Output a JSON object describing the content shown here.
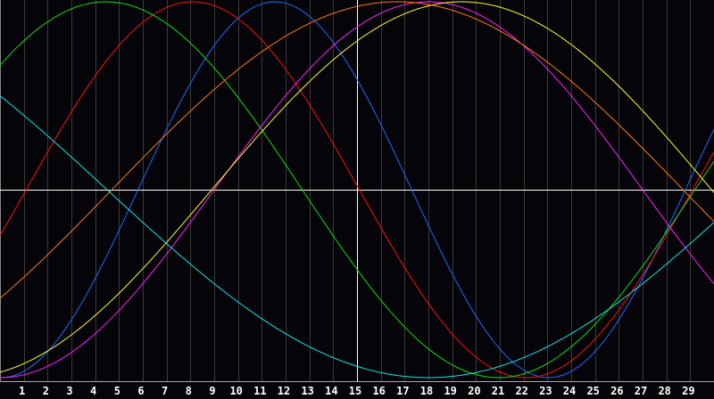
{
  "chart_data": {
    "type": "line",
    "x_ticks": [
      "1",
      "2",
      "3",
      "4",
      "5",
      "6",
      "7",
      "8",
      "9",
      "10",
      "11",
      "12",
      "13",
      "14",
      "15",
      "16",
      "17",
      "18",
      "19",
      "20",
      "21",
      "22",
      "23",
      "24",
      "25",
      "26",
      "27",
      "28",
      "29"
    ],
    "xlim": [
      0,
      30
    ],
    "ylim": [
      -1,
      1
    ],
    "grid": true,
    "highlight_x": 15,
    "highlight_y": 0,
    "series": [
      {
        "color": "#1e6cff",
        "period": 23,
        "zero_up_day": 5.8
      },
      {
        "color": "#ff1010",
        "period": 28,
        "zero_up_day": 1.1
      },
      {
        "color": "#10e010",
        "period": 33,
        "zero_up_day": -3.8
      },
      {
        "color": "#ff20ff",
        "period": 36,
        "zero_up_day": 9.0
      },
      {
        "color": "#ffff20",
        "period": 42,
        "zero_up_day": 8.9
      },
      {
        "color": "#ff7a10",
        "period": 48,
        "zero_up_day": 4.7
      },
      {
        "color": "#10e8e8",
        "period": 54,
        "zero_up_day": -22.5
      }
    ],
    "colors": {
      "background": "#050408",
      "grid": "#3a3a3a",
      "axis": "#ffffff"
    }
  }
}
